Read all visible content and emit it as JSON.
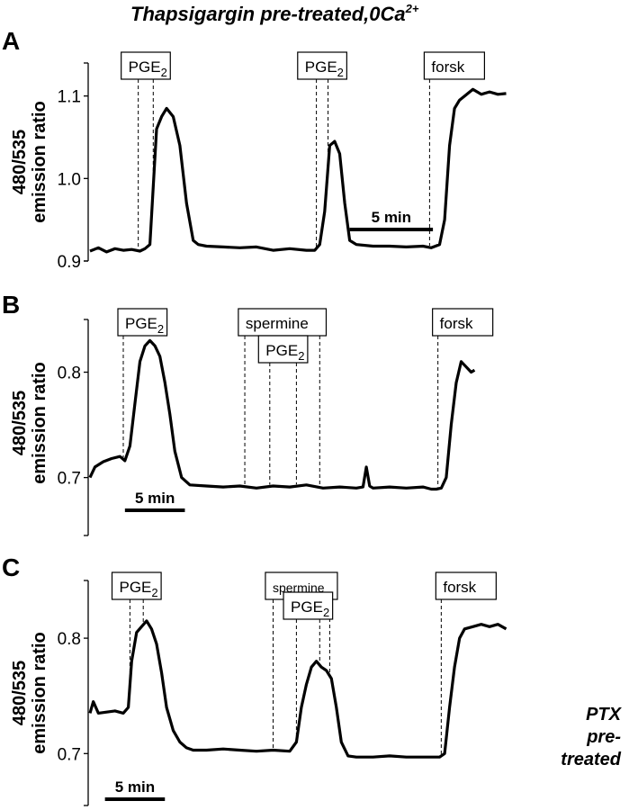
{
  "title": {
    "main": "Thapsigargin pre-treated,0Ca",
    "superscript": "2+"
  },
  "chart_data": [
    {
      "type": "line",
      "panel": "A",
      "ylabel_line1": "480/535",
      "ylabel_line2": "emission ratio",
      "ylim": [
        0.9,
        1.14
      ],
      "ytick_values": [
        0.9,
        1.0,
        1.1
      ],
      "ytick_labels": [
        "0.9",
        "1.0",
        "1.1"
      ],
      "xlim": [
        0,
        30
      ],
      "x_units": "min",
      "annotations": [
        {
          "base": "PGE",
          "sub": "2",
          "dash_start": 2.9,
          "dash_end": 3.8
        },
        {
          "base": "PGE",
          "sub": "2",
          "dash_start": 13.6,
          "dash_end": 14.3
        },
        {
          "base": "forsk",
          "sub": "",
          "dash_start": 20.4,
          "dash_end": null
        }
      ],
      "scale_bar": {
        "label": "5 min",
        "x_start": 15.6,
        "length": 5.0
      },
      "series": [
        {
          "x": [
            0,
            0.5,
            1,
            1.5,
            2,
            2.5,
            3,
            3.3,
            3.6,
            4,
            4.3,
            4.6,
            5,
            5.4,
            5.8,
            6.2,
            6.5,
            7,
            8,
            9,
            10,
            11,
            12,
            13,
            13.5,
            13.8,
            14.1,
            14.4,
            14.7,
            15,
            15.3,
            15.6,
            16,
            17,
            18,
            19,
            20,
            20.5,
            21,
            21.3,
            21.6,
            21.9,
            22.2,
            22.5,
            23,
            23.5,
            24,
            24.5,
            25
          ],
          "y": [
            0.912,
            0.916,
            0.911,
            0.915,
            0.913,
            0.914,
            0.912,
            0.915,
            0.92,
            1.06,
            1.075,
            1.085,
            1.075,
            1.04,
            0.97,
            0.925,
            0.92,
            0.918,
            0.917,
            0.916,
            0.917,
            0.913,
            0.915,
            0.913,
            0.913,
            0.92,
            0.96,
            1.04,
            1.045,
            1.03,
            0.97,
            0.925,
            0.92,
            0.918,
            0.918,
            0.917,
            0.918,
            0.916,
            0.92,
            0.95,
            1.04,
            1.085,
            1.095,
            1.1,
            1.108,
            1.102,
            1.105,
            1.102,
            1.103
          ]
        }
      ]
    },
    {
      "type": "line",
      "panel": "B",
      "ylabel_line1": "480/535",
      "ylabel_line2": "emission ratio",
      "ylim": [
        0.645,
        0.85
      ],
      "ytick_values": [
        0.7,
        0.8
      ],
      "ytick_labels": [
        "0.7",
        "0.8"
      ],
      "xlim": [
        0,
        30
      ],
      "x_units": "min",
      "annotations": [
        {
          "base": "PGE",
          "sub": "2",
          "dash_start": 2.0,
          "dash_end": null
        },
        {
          "base": "spermine",
          "sub": "",
          "dash_start": 9.3,
          "dash_end": 13.8
        },
        {
          "base": "PGE",
          "sub": "2",
          "dash_start": 10.8,
          "dash_end": 12.4
        }
      ],
      "annotations_right": [
        {
          "base": "forsk",
          "sub": "",
          "dash_start": 20.9,
          "dash_end": null
        }
      ],
      "scale_bar": {
        "label": "5 min",
        "x_start": 2.1,
        "length": 3.6
      },
      "series": [
        {
          "x": [
            0,
            0.3,
            0.8,
            1.3,
            1.8,
            2.1,
            2.4,
            2.7,
            3,
            3.3,
            3.6,
            3.9,
            4.2,
            4.5,
            4.8,
            5.1,
            5.5,
            6,
            7,
            8,
            9,
            10,
            11,
            12,
            13,
            14,
            15,
            16,
            16.4,
            16.6,
            16.8,
            17,
            18,
            19,
            20,
            20.5,
            20.8,
            21.1,
            21.4,
            21.7,
            22,
            22.3,
            22.6,
            22.9,
            23.1
          ],
          "y": [
            0.7,
            0.71,
            0.715,
            0.718,
            0.72,
            0.716,
            0.73,
            0.77,
            0.81,
            0.825,
            0.83,
            0.825,
            0.815,
            0.79,
            0.76,
            0.725,
            0.7,
            0.693,
            0.692,
            0.691,
            0.692,
            0.69,
            0.692,
            0.691,
            0.693,
            0.69,
            0.691,
            0.69,
            0.691,
            0.71,
            0.692,
            0.69,
            0.691,
            0.69,
            0.691,
            0.689,
            0.689,
            0.69,
            0.7,
            0.75,
            0.79,
            0.81,
            0.805,
            0.8,
            0.802
          ]
        }
      ]
    },
    {
      "type": "line",
      "panel": "C",
      "ylabel_line1": "480/535",
      "ylabel_line2": "emission ratio",
      "ylim": [
        0.655,
        0.85
      ],
      "ytick_values": [
        0.7,
        0.8
      ],
      "ytick_labels": [
        "0.7",
        "0.8"
      ],
      "xlim": [
        0,
        30
      ],
      "x_units": "min",
      "annotations": [
        {
          "base": "PGE",
          "sub": "2",
          "dash_start": 2.4,
          "dash_end": 3.2
        },
        {
          "base": "spermine",
          "sub": "",
          "dash_start": 11.0,
          "dash_end": 14.4
        },
        {
          "base": "PGE",
          "sub": "2",
          "dash_start": 12.4,
          "dash_end": 13.8
        }
      ],
      "annotations_right": [
        {
          "base": "forsk",
          "sub": "",
          "dash_start": 21.1,
          "dash_end": null
        }
      ],
      "scale_bar": {
        "label": "5 min",
        "x_start": 0.9,
        "length": 3.6
      },
      "side_note": [
        "PTX",
        "pre-",
        "treated"
      ],
      "series": [
        {
          "x": [
            0,
            0.2,
            0.5,
            1,
            1.5,
            2,
            2.3,
            2.5,
            2.8,
            3.1,
            3.4,
            3.7,
            4,
            4.3,
            4.6,
            5,
            5.4,
            5.8,
            6.2,
            7,
            8,
            9,
            10,
            11,
            12,
            12.4,
            12.7,
            13,
            13.3,
            13.6,
            13.9,
            14.2,
            14.5,
            14.8,
            15.1,
            15.5,
            16,
            17,
            18,
            19,
            20,
            20.8,
            21,
            21.3,
            21.6,
            21.9,
            22.2,
            22.5,
            23,
            23.5,
            24,
            24.5,
            25
          ],
          "y": [
            0.735,
            0.745,
            0.735,
            0.736,
            0.737,
            0.735,
            0.74,
            0.78,
            0.805,
            0.81,
            0.815,
            0.808,
            0.795,
            0.77,
            0.74,
            0.72,
            0.71,
            0.705,
            0.703,
            0.703,
            0.704,
            0.703,
            0.702,
            0.703,
            0.702,
            0.71,
            0.74,
            0.76,
            0.775,
            0.78,
            0.775,
            0.772,
            0.765,
            0.74,
            0.71,
            0.698,
            0.697,
            0.697,
            0.698,
            0.697,
            0.697,
            0.697,
            0.697,
            0.7,
            0.74,
            0.775,
            0.8,
            0.808,
            0.81,
            0.812,
            0.81,
            0.812,
            0.808
          ]
        }
      ]
    }
  ]
}
